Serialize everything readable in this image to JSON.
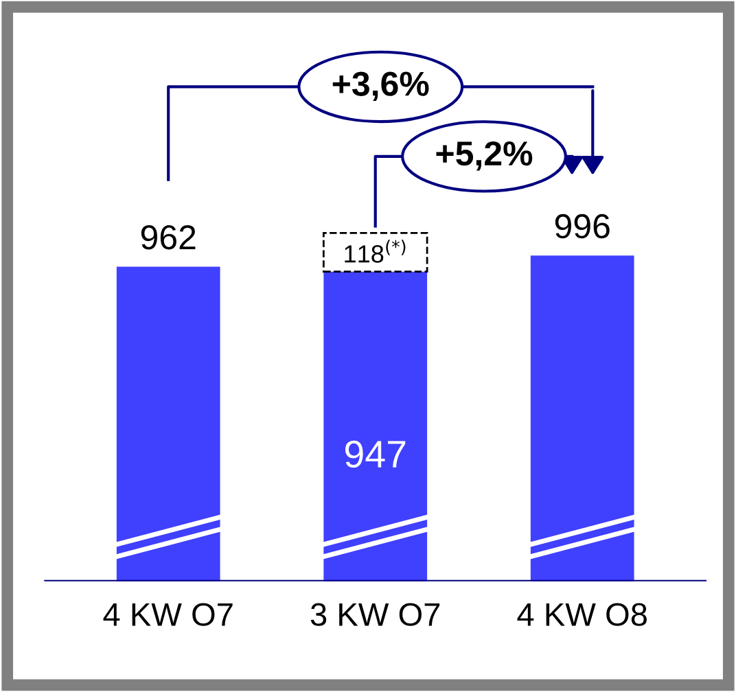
{
  "chart_data": {
    "type": "bar",
    "stacked": true,
    "categories": [
      "4 KW O7",
      "3 KW O7",
      "4 KW O8"
    ],
    "series": [
      {
        "color": "#4040ff",
        "values": [
          962,
          947,
          996
        ],
        "value_labels": [
          "962",
          "947",
          "996"
        ]
      },
      {
        "color": "#000000",
        "line_style": "dashed",
        "values": [
          null,
          118,
          null
        ],
        "value_labels": [
          null,
          "118$^{(*)}$",
          null
        ]
      }
    ],
    "annotations": [
      "+3,6%",
      "+5,2%"
    ]
  }
}
